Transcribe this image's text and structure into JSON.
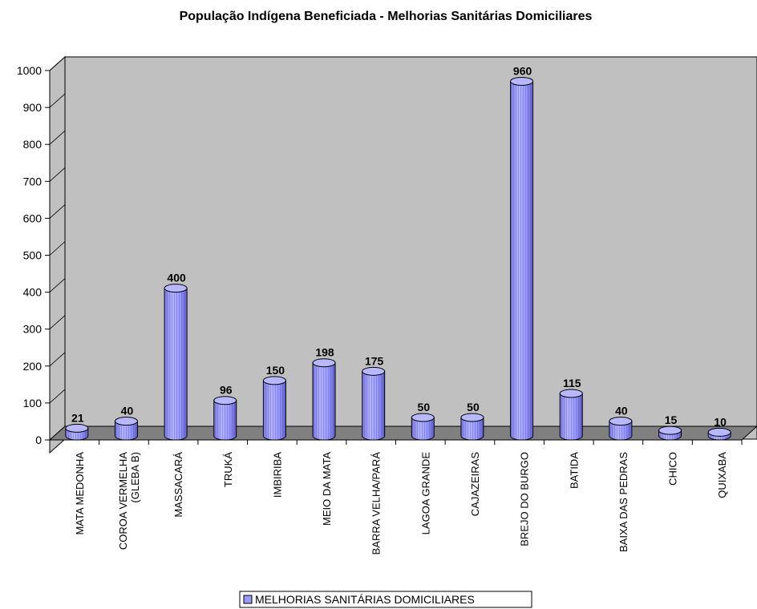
{
  "chart_data": {
    "type": "bar",
    "title": "População Indígena Beneficiada - Melhorias Sanitárias Domiciliares",
    "categories": [
      [
        "MATA MEDONHA"
      ],
      [
        "COROA VERMELHA",
        "(GLEBA B)"
      ],
      [
        "MASSACARÁ"
      ],
      [
        "TRUKÁ"
      ],
      [
        "IMBIRIBA"
      ],
      [
        "MEIO DA MATA"
      ],
      [
        "BARRA VELHA/PARÁ"
      ],
      [
        "LAGOA GRANDE"
      ],
      [
        "CAJAZEIRAS"
      ],
      [
        "BREJO DO BURGO"
      ],
      [
        "BATIDA"
      ],
      [
        "BAIXA DAS PEDRAS"
      ],
      [
        "CHICO"
      ],
      [
        "QUIXABA"
      ]
    ],
    "series": [
      {
        "name": "MELHORIAS SANITÁRIAS DOMICILIARES",
        "values": [
          21,
          40,
          400,
          96,
          150,
          198,
          175,
          50,
          50,
          960,
          115,
          40,
          15,
          10
        ],
        "color": "#9999ff"
      }
    ],
    "data_labels": [
      "21",
      "40",
      "400",
      "96",
      "150",
      "198",
      "175",
      "50",
      "50",
      "960",
      "115",
      "40",
      "15",
      "10"
    ],
    "ylim": [
      0,
      1000
    ],
    "yticks": [
      "0",
      "100",
      "200",
      "300",
      "400",
      "500",
      "600",
      "700",
      "800",
      "900",
      "1000"
    ],
    "ytick_values": [
      0,
      100,
      200,
      300,
      400,
      500,
      600,
      700,
      800,
      900,
      1000
    ],
    "legend_position": "bottom",
    "wall_color": "#c0c0c0",
    "floor_color": "#808080",
    "style": "3d-cylinder"
  }
}
